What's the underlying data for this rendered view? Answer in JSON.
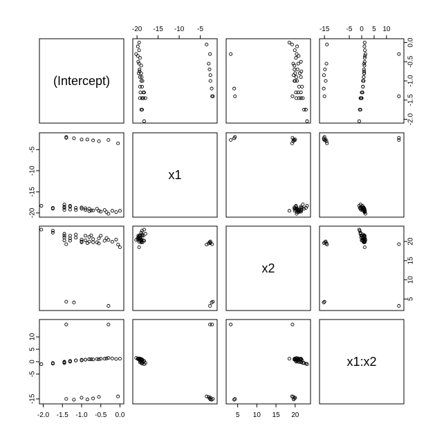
{
  "chart_data": {
    "type": "scatter",
    "subtype": "pairs-matrix",
    "variables": [
      "(Intercept)",
      "x1",
      "x2",
      "x1:x2"
    ],
    "limits": [
      [
        -2.1,
        0.1
      ],
      [
        -21,
        -1
      ],
      [
        2,
        24
      ],
      [
        -17,
        17
      ]
    ],
    "ticks": {
      "(Intercept)": {
        "values": [
          -2.0,
          -1.5,
          -1.0,
          -0.5,
          0.0
        ],
        "labels": [
          "-2.0",
          "-1.5",
          "-1.0",
          "-0.5",
          "0.0"
        ]
      },
      "x1": {
        "values": [
          -20,
          -15,
          -10,
          -5
        ],
        "labels": [
          "-20",
          "-15",
          "-10",
          "-5"
        ]
      },
      "x2": {
        "values": [
          5,
          10,
          15,
          20
        ],
        "labels": [
          "5",
          "10",
          "15",
          "20"
        ]
      },
      "x1:x2": {
        "values": [
          -15,
          -5,
          0,
          5,
          10
        ],
        "labels": [
          "-15",
          "-5",
          "0",
          "5",
          "10"
        ]
      }
    },
    "points": [
      [
        -2.05,
        -18.3,
        23.1,
        -1.0
      ],
      [
        -1.75,
        -18.8,
        22.8,
        -0.8
      ],
      [
        -1.75,
        -19.0,
        22.3,
        -0.5
      ],
      [
        -1.45,
        -18.0,
        22.0,
        -0.5
      ],
      [
        -1.45,
        -18.8,
        21.5,
        -0.2
      ],
      [
        -1.45,
        -19.3,
        21.0,
        -0.2
      ],
      [
        -1.45,
        -18.5,
        20.3,
        0.0
      ],
      [
        -1.3,
        -18.5,
        21.5,
        0.0
      ],
      [
        -1.3,
        -19.2,
        20.8,
        0.3
      ],
      [
        -1.3,
        -18.3,
        20.2,
        0.3
      ],
      [
        -1.15,
        -18.8,
        21.8,
        0.5
      ],
      [
        -1.15,
        -19.3,
        21.0,
        0.5
      ],
      [
        -1.0,
        -19.0,
        20.5,
        0.5
      ],
      [
        -1.0,
        -18.7,
        19.8,
        0.8
      ],
      [
        -0.9,
        -19.3,
        21.5,
        0.8
      ],
      [
        -0.9,
        -18.9,
        20.3,
        0.8
      ],
      [
        -0.8,
        -19.6,
        21.2,
        1.0
      ],
      [
        -0.8,
        -19.0,
        20.0,
        1.0
      ],
      [
        -0.75,
        -19.4,
        21.6,
        1.0
      ],
      [
        -0.7,
        -19.4,
        20.6,
        0.9
      ],
      [
        -0.6,
        -19.0,
        19.8,
        1.1
      ],
      [
        -0.55,
        -19.5,
        20.8,
        1.0
      ],
      [
        -0.5,
        -19.7,
        21.5,
        1.2
      ],
      [
        -0.4,
        -19.3,
        20.2,
        1.2
      ],
      [
        -0.35,
        -19.8,
        20.9,
        1.3
      ],
      [
        -0.3,
        -20.2,
        20.4,
        1.5
      ],
      [
        -0.2,
        -19.5,
        19.9,
        1.3
      ],
      [
        -0.1,
        -19.8,
        20.5,
        1.1
      ],
      [
        0.0,
        -19.5,
        18.5,
        1.2
      ],
      [
        -1.4,
        -2.0,
        4.3,
        -15.0
      ],
      [
        -1.2,
        -2.3,
        4.1,
        -15.3
      ],
      [
        -1.0,
        -2.6,
        20.0,
        -14.5
      ],
      [
        -0.85,
        -2.6,
        19.6,
        -15.2
      ],
      [
        -0.7,
        -2.8,
        19.8,
        -14.8
      ],
      [
        -0.55,
        -3.0,
        19.5,
        -14.2
      ],
      [
        -0.3,
        -2.7,
        3.2,
        15.0
      ],
      [
        -0.05,
        -3.5,
        19.2,
        -14.0
      ],
      [
        -1.4,
        -2.2,
        19.3,
        15.0
      ]
    ]
  }
}
